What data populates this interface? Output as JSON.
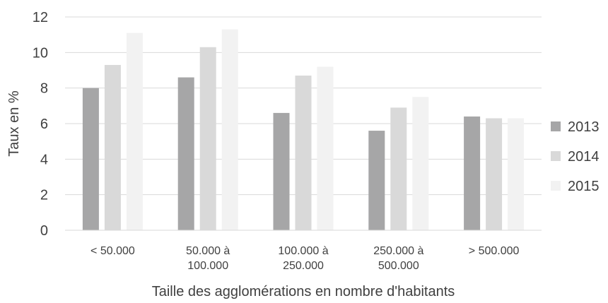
{
  "chart_data": {
    "type": "bar",
    "title": "",
    "xlabel": "Taille des agglomérations en nombre d'habitants",
    "ylabel": "Taux en %",
    "ylim": [
      0,
      12
    ],
    "yticks": [
      "0",
      "2",
      "4",
      "6",
      "8",
      "10",
      "12"
    ],
    "grid": true,
    "legend_position": "right",
    "categories": [
      [
        "< 50.000"
      ],
      [
        "50.000 à",
        "100.000"
      ],
      [
        "100.000 à",
        "250.000"
      ],
      [
        "250.000 à",
        "500.000"
      ],
      [
        "> 500.000"
      ]
    ],
    "series": [
      {
        "name": "2013",
        "color": "#a6a6a7",
        "values": [
          8.0,
          8.6,
          6.6,
          5.6,
          6.4
        ]
      },
      {
        "name": "2014",
        "color": "#d9d9d9",
        "values": [
          9.3,
          10.3,
          8.7,
          6.9,
          6.3
        ]
      },
      {
        "name": "2015",
        "color": "#f2f2f2",
        "values": [
          11.1,
          11.3,
          9.2,
          7.5,
          6.3
        ]
      }
    ]
  }
}
